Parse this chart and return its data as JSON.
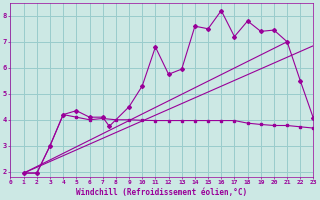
{
  "xlabel": "Windchill (Refroidissement éolien,°C)",
  "bg_color": "#cce8e4",
  "grid_color": "#99cccc",
  "line_color": "#990099",
  "xlim": [
    0,
    23
  ],
  "ylim": [
    1.8,
    8.5
  ],
  "xticks": [
    0,
    1,
    2,
    3,
    4,
    5,
    6,
    7,
    8,
    9,
    10,
    11,
    12,
    13,
    14,
    15,
    16,
    17,
    18,
    19,
    20,
    21,
    22,
    23
  ],
  "yticks": [
    2,
    3,
    4,
    5,
    6,
    7,
    8
  ],
  "series1_x": [
    1,
    2,
    3,
    4,
    5,
    6,
    7,
    7.5,
    9,
    10,
    11,
    12,
    13,
    14,
    15,
    16,
    17,
    18,
    19,
    20,
    21,
    22,
    23
  ],
  "series1_y": [
    1.95,
    1.95,
    3.0,
    4.2,
    4.35,
    4.1,
    4.1,
    3.75,
    4.5,
    5.3,
    6.8,
    5.75,
    5.95,
    7.6,
    7.5,
    8.2,
    7.2,
    7.8,
    7.4,
    7.45,
    7.0,
    5.5,
    4.05
  ],
  "series2_x": [
    1,
    2,
    3,
    4,
    5,
    6,
    7,
    8,
    9,
    10,
    11,
    12,
    13,
    14,
    15,
    16,
    17,
    18,
    19,
    20,
    21,
    22,
    23
  ],
  "series2_y": [
    1.95,
    1.95,
    3.0,
    4.2,
    4.1,
    4.0,
    4.05,
    4.0,
    4.0,
    3.98,
    3.97,
    3.97,
    3.97,
    3.97,
    3.97,
    3.97,
    3.97,
    3.87,
    3.82,
    3.78,
    3.78,
    3.73,
    3.68
  ],
  "series3_x": [
    1,
    21
  ],
  "series3_y": [
    1.95,
    7.0
  ],
  "series4_x": [
    1,
    23
  ],
  "series4_y": [
    1.95,
    6.85
  ]
}
